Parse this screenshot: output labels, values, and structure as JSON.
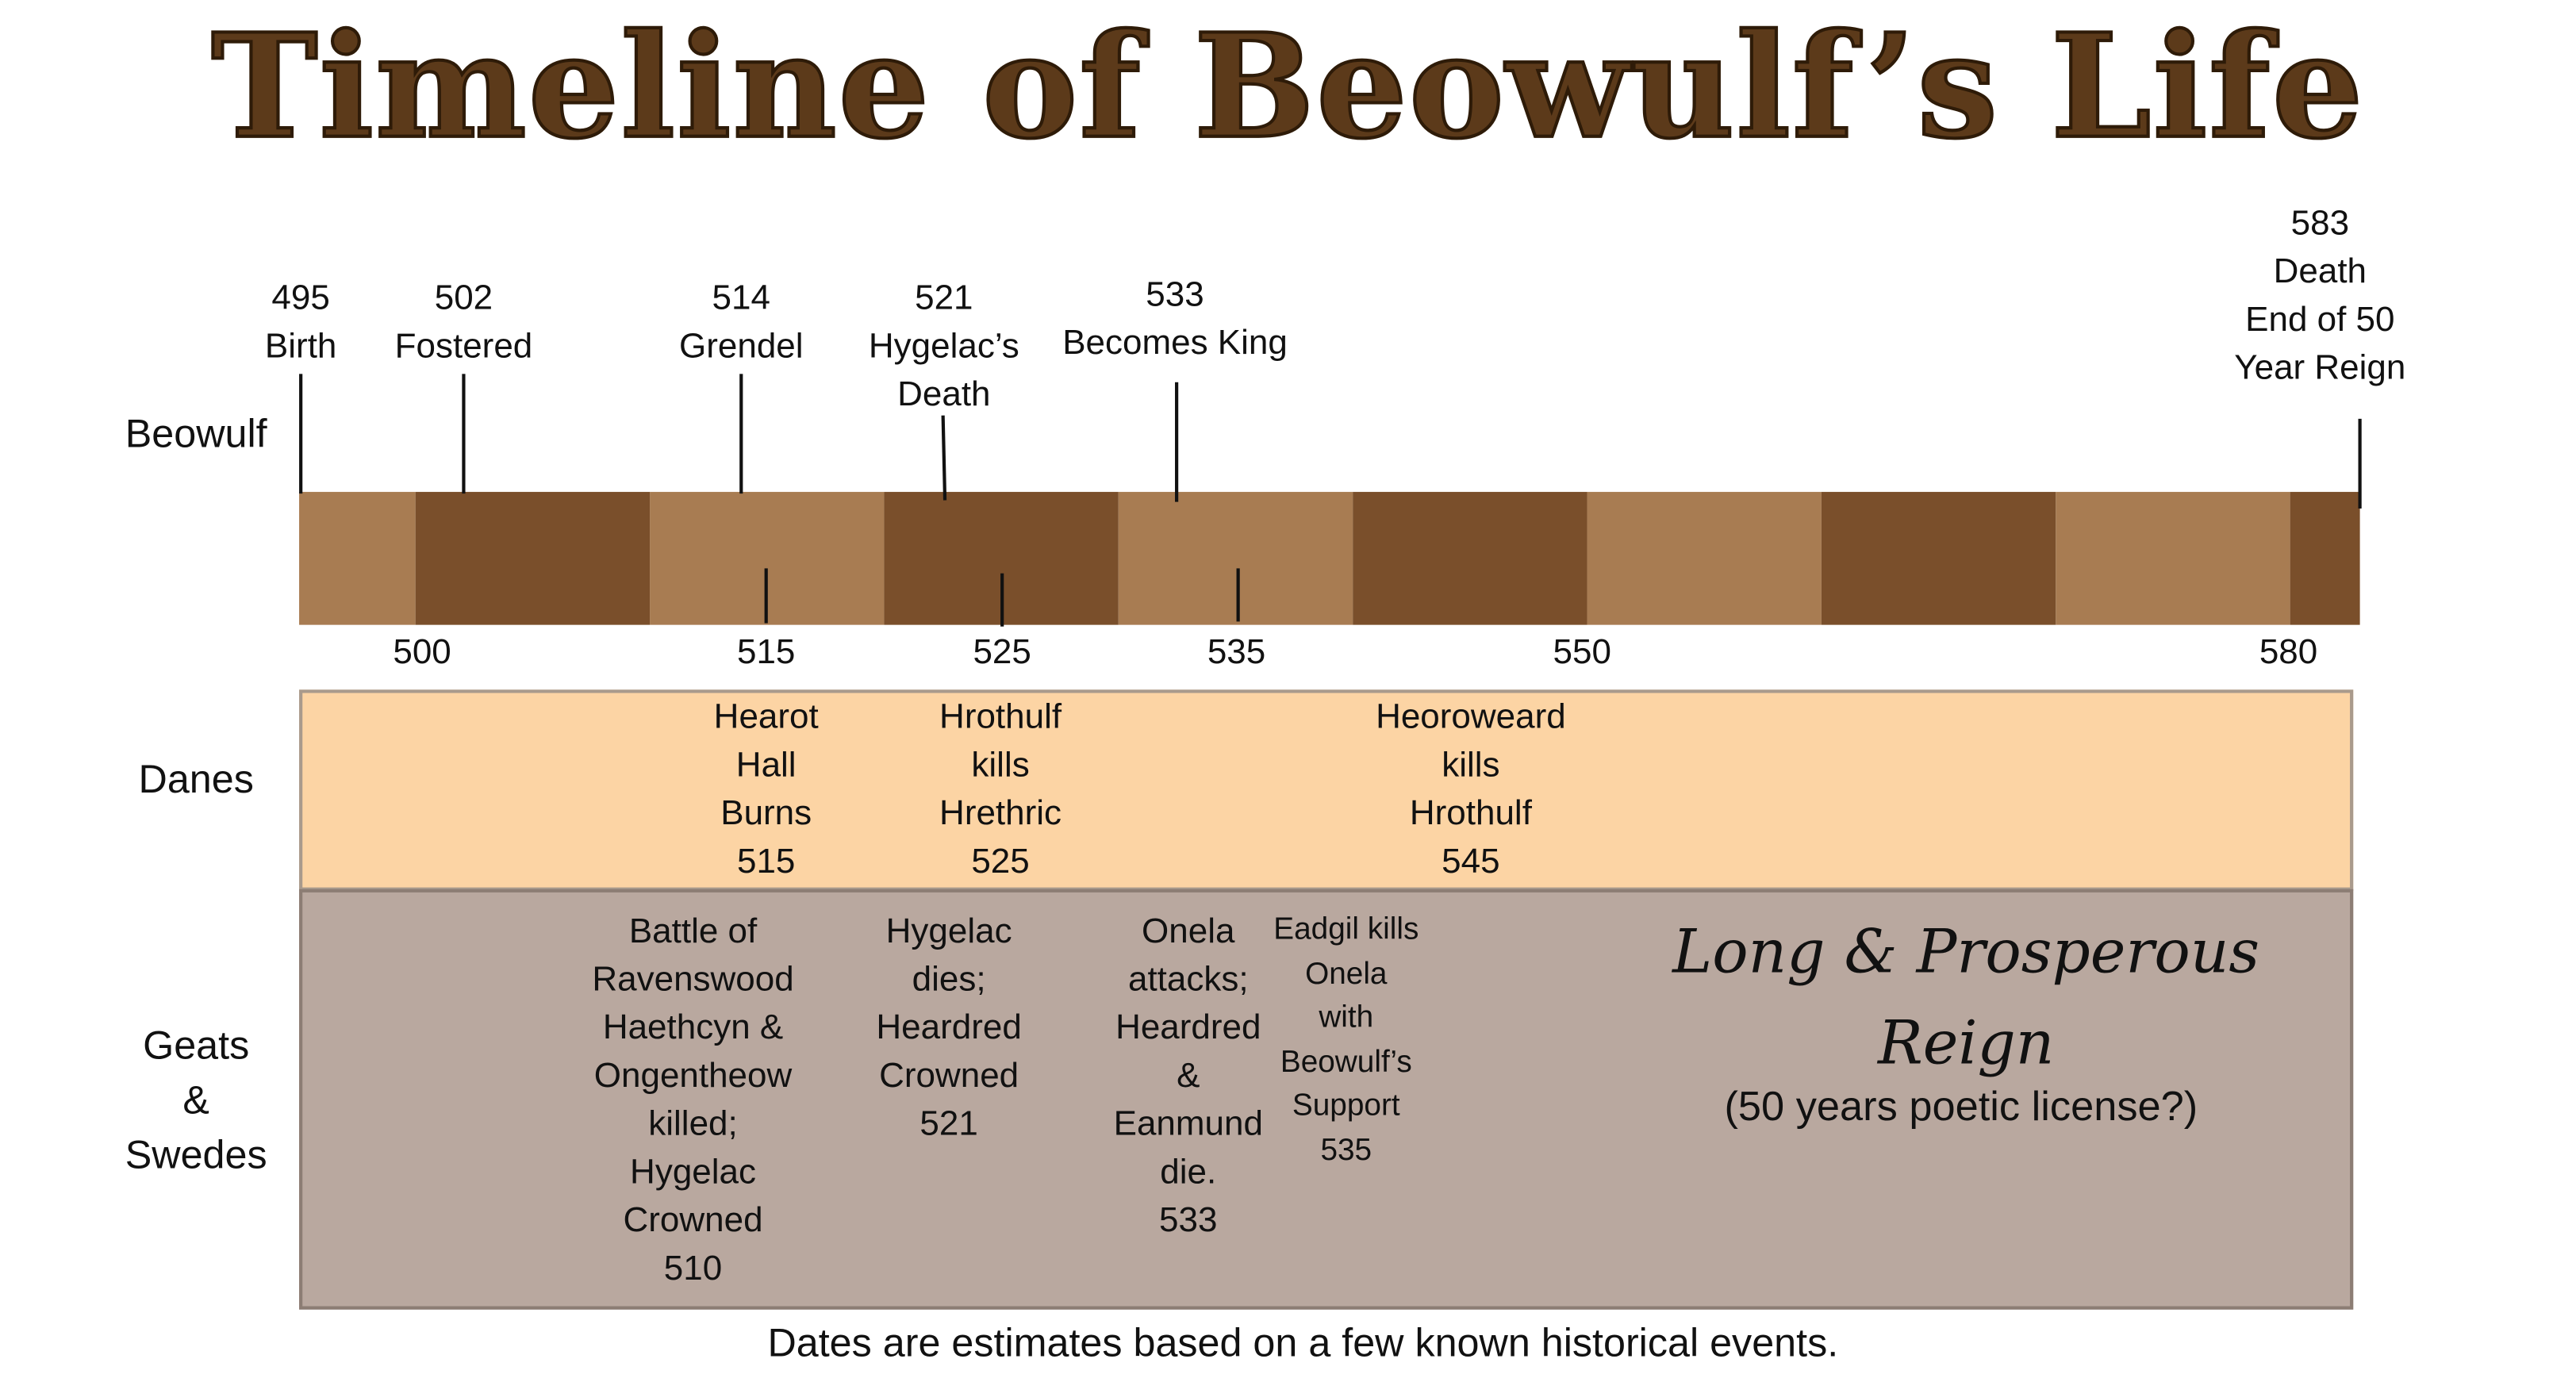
{
  "title": "Timeline of Beowulf’s Life",
  "colors": {
    "title": "#5c3a1a",
    "bar_light": "#a87c52",
    "bar_dark": "#7a4f2b",
    "danes_bg": "#fcd4a4",
    "geats_bg": "#b9a89f"
  },
  "rows": {
    "beowulf": "Beowulf",
    "danes": "Danes",
    "geats": "Geats\n&\nSwedes"
  },
  "beowulf_events": [
    {
      "year": "495",
      "label": "Birth"
    },
    {
      "year": "502",
      "label": "Fostered"
    },
    {
      "year": "514",
      "label": "Grendel"
    },
    {
      "year": "521",
      "label": "Hygelac’s\nDeath"
    },
    {
      "year": "533",
      "label": "Becomes King"
    },
    {
      "year": "583",
      "label": "Death\nEnd of 50\nYear Reign"
    }
  ],
  "axis_ticks": [
    "500",
    "515",
    "525",
    "535",
    "550",
    "580"
  ],
  "danes_events": [
    "Hearot\nHall\nBurns\n515",
    "Hrothulf\nkills\nHrethric\n525",
    "Heoroweard\nkills\nHrothulf\n545"
  ],
  "geats_events": [
    "Battle of\nRavenswood\nHaethcyn &\nOngentheow\nkilled;\nHygelac\nCrowned\n510",
    "Hygelac\ndies;\nHeardred\nCrowned\n521",
    "Onela\nattacks;\nHeardred\n&\nEanmund\ndie.\n533",
    "Eadgil kills\nOnela\nwith\nBeowulf’s\nSupport\n535"
  ],
  "reign": {
    "line1": "Long & Prosperous",
    "line2": "Reign",
    "note": "(50 years poetic license?)"
  },
  "footer": "Dates are estimates based on a few known historical events."
}
